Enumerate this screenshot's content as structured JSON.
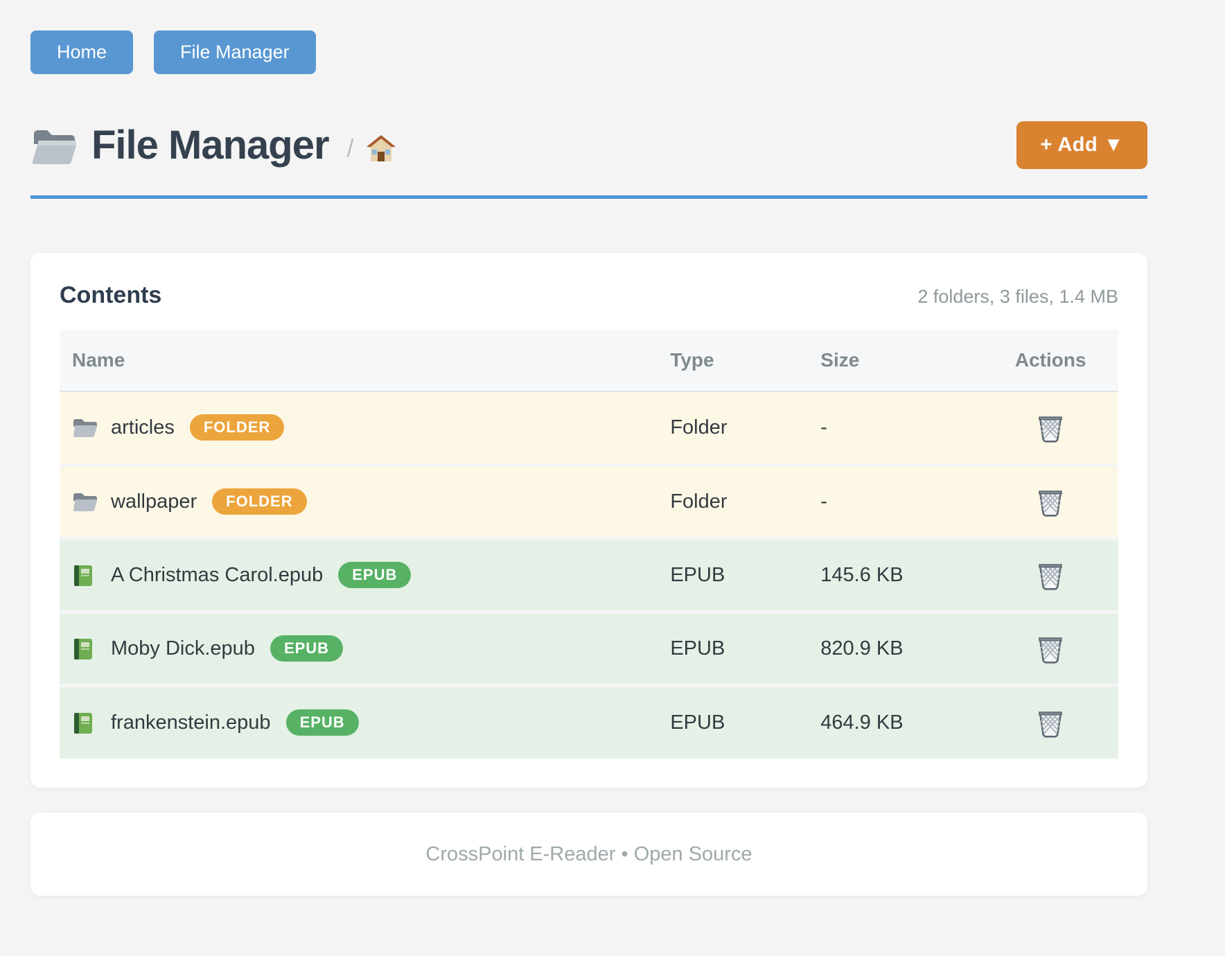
{
  "nav": {
    "home_label": "Home",
    "file_manager_label": "File Manager"
  },
  "header": {
    "title": "File Manager",
    "breadcrumb_separator": "/",
    "breadcrumb_root_icon": "home-icon",
    "title_icon": "folder-icon",
    "add_button_label": "+ Add ▼"
  },
  "panel": {
    "title": "Contents",
    "summary": "2 folders, 3 files, 1.4 MB",
    "table": {
      "columns": [
        "Name",
        "Type",
        "Size",
        "Actions"
      ],
      "rows": [
        {
          "name": "articles",
          "badge": "FOLDER",
          "type": "Folder",
          "size": "-",
          "kind": "folder",
          "icon": "folder-icon",
          "action_icon": "trash-icon"
        },
        {
          "name": "wallpaper",
          "badge": "FOLDER",
          "type": "Folder",
          "size": "-",
          "kind": "folder",
          "icon": "folder-icon",
          "action_icon": "trash-icon"
        },
        {
          "name": "A Christmas Carol.epub",
          "badge": "EPUB",
          "type": "EPUB",
          "size": "145.6 KB",
          "kind": "epub",
          "icon": "book-icon",
          "action_icon": "trash-icon"
        },
        {
          "name": "Moby Dick.epub",
          "badge": "EPUB",
          "type": "EPUB",
          "size": "820.9 KB",
          "kind": "epub",
          "icon": "book-icon",
          "action_icon": "trash-icon"
        },
        {
          "name": "frankenstein.epub",
          "badge": "EPUB",
          "type": "EPUB",
          "size": "464.9 KB",
          "kind": "epub",
          "icon": "book-icon",
          "action_icon": "trash-icon"
        }
      ]
    }
  },
  "footer": {
    "text": "CrossPoint E-Reader • Open Source"
  },
  "colors": {
    "page_bg": "#f4f4f5",
    "nav_blue": "#5897d2",
    "rule_blue": "#4d94d6",
    "accent_orange": "#d9822f",
    "badge_orange": "#eca53c",
    "badge_green": "#57b266",
    "row_folder_bg": "#fdf7e6",
    "row_epub_bg": "#e5f1e6",
    "thead_bg": "#f5f7f9",
    "title_ink": "#36414f",
    "muted_ink": "#8e999b"
  }
}
